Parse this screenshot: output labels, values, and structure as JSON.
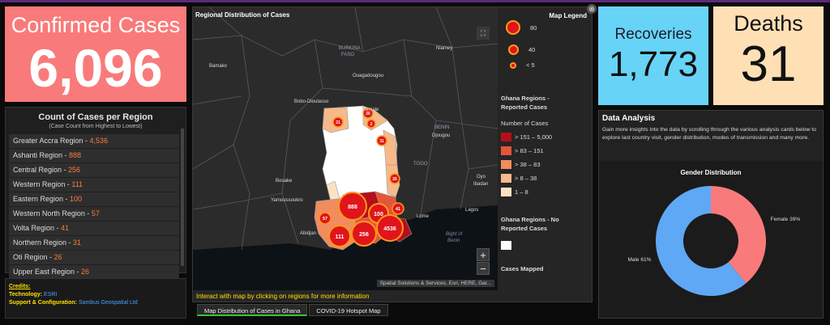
{
  "confirmed": {
    "label": "Confirmed Cases",
    "value": "6,096"
  },
  "region_counts": {
    "title": "Count of Cases per Region",
    "subtitle": "(Case Count from Highest to Lowest)",
    "items": [
      {
        "name": "Greater Accra Region",
        "value": "4,536"
      },
      {
        "name": "Ashanti Region",
        "value": "888"
      },
      {
        "name": "Central Region",
        "value": "256"
      },
      {
        "name": "Western Region",
        "value": "111"
      },
      {
        "name": "Eastern Region",
        "value": "100"
      },
      {
        "name": "Western North Region",
        "value": "57"
      },
      {
        "name": "Volta Region",
        "value": "41"
      },
      {
        "name": "Northern Region",
        "value": "31"
      },
      {
        "name": "Oti Region",
        "value": "26"
      },
      {
        "name": "Upper East Region",
        "value": "26"
      }
    ]
  },
  "credits": {
    "heading": "Credits:",
    "technology_label": "Technology:",
    "technology_value": "ESRI",
    "support_label": "Support & Configuration:",
    "support_value": "Sambus Geospatial Ltd"
  },
  "map": {
    "title": "Regional Distribution of Cases",
    "attribution": "Spatial Solutions & Services, Esri, HERE, Gar...",
    "zoom_in": "+",
    "zoom_out": "−",
    "hint": "Interact with map by clicking on regions for more information",
    "place_labels": [
      "Bamako",
      "BURKINA",
      "FASO",
      "Niamey",
      "Ouagadougou",
      "Bobo-Dioulasso",
      "Tamale",
      "BENIN",
      "Djougou",
      "TOGO",
      "Bouake",
      "Yamoussoukro",
      "Oyo",
      "Ibadan",
      "Lome",
      "Lagos",
      "Abidjan",
      "Bight of",
      "Benin"
    ],
    "bubbles": [
      "888",
      "100",
      "4536",
      "256",
      "111",
      "57",
      "41",
      "26",
      "31",
      "21",
      "26",
      "2"
    ],
    "legend": {
      "title": "Map Legend",
      "sizes": [
        "80",
        "40",
        "< 5"
      ],
      "reported_title": "Ghana Regions - Reported Cases",
      "count_title": "Number of Cases",
      "classes": [
        {
          "label": "> 151 – 5,000",
          "color": "#b50f1a"
        },
        {
          "label": "> 83 – 151",
          "color": "#e2573a"
        },
        {
          "label": "> 38 – 83",
          "color": "#f08c5e"
        },
        {
          "label": "> 8 – 38",
          "color": "#f6b98a"
        },
        {
          "label": "1 – 8",
          "color": "#fbe2c4"
        }
      ],
      "no_reported_title": "Ghana Regions - No Reported Cases",
      "no_reported_color": "#ffffff",
      "mapped_title": "Cases Mapped"
    }
  },
  "tabs": [
    {
      "label": "Map Distribution of Cases in Ghana",
      "active": true
    },
    {
      "label": "COVID-19 Hotspot Map",
      "active": false
    }
  ],
  "recoveries": {
    "label": "Recoveries",
    "value": "1,773"
  },
  "deaths": {
    "label": "Deaths",
    "value": "31"
  },
  "analysis": {
    "title": "Data Analysis",
    "text": "Gain more insights into the data by scrolling through the various analysis cards below to explore last country visit, gender distribution, modes of transmission and many more."
  },
  "chart_data": {
    "type": "pie",
    "title": "Gender Distribution",
    "slices": [
      {
        "label": "Female 39%",
        "value": 39,
        "color": "#f97a7a"
      },
      {
        "label": "Male 61%",
        "value": 61,
        "color": "#5fa8f5"
      }
    ]
  }
}
